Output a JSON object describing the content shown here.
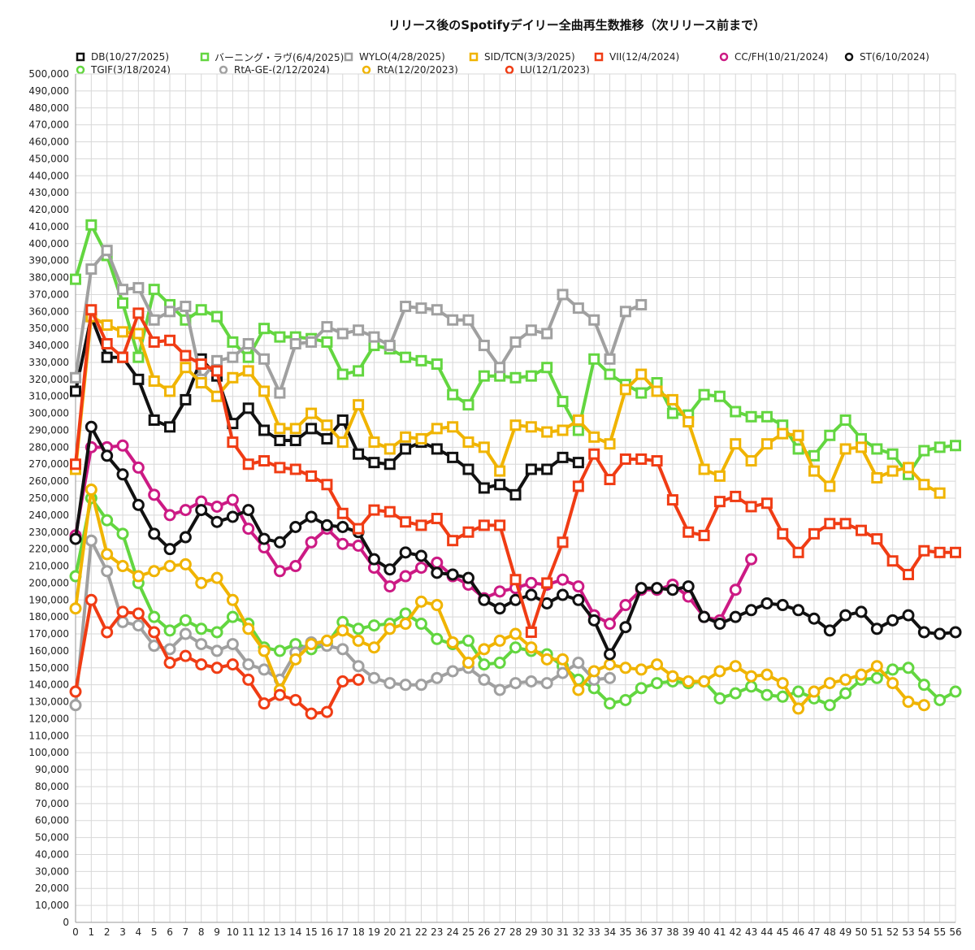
{
  "chart_data": {
    "type": "line",
    "title": "リリース後のSpotifyデイリー全曲再生数推移（次リリース前まで）",
    "xlabel": "",
    "ylabel": "",
    "xlim": [
      0,
      56
    ],
    "ylim": [
      0,
      500000
    ],
    "y_tick_step": 10000,
    "y_tick_labels": [
      "0",
      "10,000",
      "20,000",
      "30,000",
      "40,000",
      "50,000",
      "60,000",
      "70,000",
      "80,000",
      "90,000",
      "100,000",
      "110,000",
      "120,000",
      "130,000",
      "140,000",
      "150,000",
      "160,000",
      "170,000",
      "180,000",
      "190,000",
      "200,000",
      "210,000",
      "220,000",
      "230,000",
      "240,000",
      "250,000",
      "260,000",
      "270,000",
      "280,000",
      "290,000",
      "300,000",
      "310,000",
      "320,000",
      "330,000",
      "340,000",
      "350,000",
      "360,000",
      "370,000",
      "380,000",
      "390,000",
      "400,000",
      "410,000",
      "420,000",
      "430,000",
      "440,000",
      "450,000",
      "460,000",
      "470,000",
      "480,000",
      "490,000",
      "500,000"
    ],
    "x_tick_labels": [
      "0",
      "1",
      "2",
      "3",
      "4",
      "5",
      "6",
      "7",
      "8",
      "9",
      "10",
      "11",
      "12",
      "13",
      "14",
      "15",
      "16",
      "17",
      "18",
      "19",
      "20",
      "21",
      "22",
      "23",
      "24",
      "25",
      "26",
      "27",
      "28",
      "29",
      "30",
      "31",
      "32",
      "33",
      "34",
      "35",
      "36",
      "37",
      "38",
      "39",
      "40",
      "41",
      "42",
      "43",
      "44",
      "45",
      "46",
      "47",
      "48",
      "49",
      "50",
      "51",
      "52",
      "53",
      "54",
      "55",
      "56"
    ],
    "grid": true,
    "legend_position": "top",
    "series": [
      {
        "name": "TGIF(3/18/2024)",
        "color": "#63d640",
        "marker": "circle",
        "values": [
          204000,
          250000,
          237000,
          229000,
          200000,
          180000,
          172000,
          178000,
          173000,
          171000,
          180000,
          176000,
          162000,
          160000,
          164000,
          161000,
          164000,
          177000,
          173000,
          175000,
          176000,
          182000,
          176000,
          167000,
          164000,
          166000,
          152000,
          153000,
          162000,
          160000,
          158000,
          151000,
          143000,
          138000,
          129000,
          131000,
          138000,
          141000,
          142000,
          141000,
          142000,
          132000,
          135000,
          139000,
          134000,
          133000,
          136000,
          132000,
          128000,
          135000,
          143000,
          144000,
          149000,
          150000,
          140000,
          131000,
          136000
        ]
      },
      {
        "name": "RtA-GE-(2/12/2024)",
        "color": "#a0a0a0",
        "marker": "circle",
        "values": [
          128000,
          225000,
          207000,
          177000,
          175000,
          163000,
          161000,
          170000,
          164000,
          160000,
          164000,
          152000,
          149000,
          143000,
          159000,
          165000,
          163000,
          161000,
          151000,
          144000,
          141000,
          140000,
          140000,
          144000,
          148000,
          150000,
          143000,
          137000,
          141000,
          142000,
          141000,
          147000,
          153000,
          143000,
          144000
        ]
      },
      {
        "name": "RtA(12/20/2023)",
        "color": "#f0b400",
        "marker": "circle",
        "values": [
          185000,
          255000,
          217000,
          210000,
          204000,
          207000,
          210000,
          211000,
          200000,
          203000,
          190000,
          173000,
          160000,
          137000,
          155000,
          164000,
          166000,
          172000,
          166000,
          162000,
          173000,
          176000,
          189000,
          187000,
          165000,
          153000,
          161000,
          166000,
          170000,
          162000,
          155000,
          155000,
          137000,
          148000,
          152000,
          150000,
          149000,
          152000,
          145000,
          142000,
          142000,
          148000,
          151000,
          145000,
          146000,
          141000,
          126000,
          136000,
          141000,
          143000,
          146000,
          151000,
          141000,
          130000,
          128000
        ]
      },
      {
        "name": "LU(12/1/2023)",
        "color": "#f03c14",
        "marker": "circle",
        "values": [
          136000,
          190000,
          171000,
          183000,
          182000,
          171000,
          153000,
          157000,
          152000,
          150000,
          152000,
          143000,
          129000,
          134000,
          131000,
          123000,
          124000,
          142000,
          143000
        ]
      },
      {
        "name": "CC/FH(10/21/2024)",
        "color": "#cc1a84",
        "marker": "circle",
        "values": [
          228000,
          280000,
          280000,
          281000,
          268000,
          252000,
          240000,
          243000,
          248000,
          245000,
          249000,
          232000,
          221000,
          207000,
          210000,
          224000,
          232000,
          223000,
          222000,
          209000,
          198000,
          204000,
          209000,
          212000,
          204000,
          199000,
          191000,
          195000,
          197000,
          200000,
          199000,
          202000,
          198000,
          181000,
          176000,
          187000,
          196000,
          196000,
          199000,
          192000,
          180000,
          178000,
          196000,
          214000
        ]
      },
      {
        "name": "ST(6/10/2024)",
        "color": "#111111",
        "marker": "circle",
        "values": [
          226000,
          292000,
          275000,
          264000,
          246000,
          229000,
          220000,
          227000,
          243000,
          236000,
          239000,
          243000,
          226000,
          224000,
          233000,
          239000,
          234000,
          233000,
          230000,
          214000,
          208000,
          218000,
          216000,
          206000,
          205000,
          203000,
          190000,
          185000,
          190000,
          193000,
          188000,
          193000,
          190000,
          178000,
          158000,
          174000,
          197000,
          197000,
          196000,
          198000,
          180000,
          176000,
          180000,
          184000,
          188000,
          187000,
          184000,
          179000,
          172000,
          181000,
          183000,
          173000,
          178000,
          181000,
          171000,
          170000,
          171000
        ]
      },
      {
        "name": "DB(10/27/2025)",
        "color": "#111111",
        "marker": "square",
        "values": [
          313000,
          357000,
          333000,
          333000,
          320000,
          296000,
          292000,
          308000,
          332000,
          322000,
          294000,
          303000,
          290000,
          284000,
          284000,
          291000,
          285000,
          296000,
          276000,
          271000,
          270000,
          279000,
          283000,
          279000,
          274000,
          267000,
          256000,
          258000,
          252000,
          267000,
          267000,
          274000,
          271000
        ]
      },
      {
        "name": "バーニング・ラヴ(6/4/2025)",
        "color": "#63d640",
        "marker": "square",
        "values": [
          379000,
          411000,
          393000,
          365000,
          333000,
          373000,
          364000,
          355000,
          361000,
          357000,
          342000,
          333000,
          350000,
          345000,
          345000,
          344000,
          342000,
          323000,
          325000,
          340000,
          338000,
          333000,
          331000,
          329000,
          311000,
          305000,
          322000,
          322000,
          321000,
          322000,
          327000,
          307000,
          290000,
          332000,
          323000,
          317000,
          312000,
          318000,
          300000,
          299000,
          311000,
          310000,
          301000,
          298000,
          298000,
          293000,
          279000,
          275000,
          287000,
          296000,
          285000,
          279000,
          276000,
          264000,
          278000,
          280000,
          281000
        ]
      },
      {
        "name": "WYLO(4/28/2025)",
        "color": "#a0a0a0",
        "marker": "square",
        "values": [
          321000,
          385000,
          396000,
          373000,
          374000,
          355000,
          360000,
          363000,
          320000,
          331000,
          333000,
          341000,
          332000,
          312000,
          341000,
          342000,
          351000,
          347000,
          349000,
          345000,
          340000,
          363000,
          362000,
          361000,
          355000,
          355000,
          340000,
          327000,
          342000,
          349000,
          347000,
          370000,
          362000,
          355000,
          332000,
          360000,
          364000
        ]
      },
      {
        "name": "SID/TCN(3/3/2025)",
        "color": "#f0b400",
        "marker": "square",
        "values": [
          267000,
          357000,
          352000,
          348000,
          347000,
          319000,
          313000,
          327000,
          318000,
          310000,
          321000,
          325000,
          313000,
          291000,
          291000,
          300000,
          293000,
          283000,
          305000,
          283000,
          279000,
          286000,
          285000,
          291000,
          292000,
          283000,
          280000,
          266000,
          293000,
          292000,
          289000,
          290000,
          296000,
          286000,
          282000,
          314000,
          323000,
          313000,
          308000,
          295000,
          267000,
          263000,
          282000,
          272000,
          282000,
          288000,
          287000,
          266000,
          257000,
          279000,
          280000,
          262000,
          266000,
          268000,
          258000,
          253000
        ]
      },
      {
        "name": "VII(12/4/2024)",
        "color": "#f03c14",
        "marker": "square",
        "values": [
          270000,
          361000,
          341000,
          333000,
          359000,
          342000,
          343000,
          334000,
          329000,
          325000,
          283000,
          270000,
          272000,
          268000,
          267000,
          263000,
          258000,
          241000,
          232000,
          243000,
          242000,
          236000,
          234000,
          238000,
          225000,
          230000,
          234000,
          234000,
          202000,
          171000,
          200000,
          224000,
          257000,
          276000,
          261000,
          273000,
          273000,
          272000,
          249000,
          230000,
          228000,
          248000,
          251000,
          245000,
          247000,
          229000,
          218000,
          229000,
          235000,
          235000,
          231000,
          226000,
          213000,
          205000,
          219000,
          218000,
          218000
        ]
      }
    ]
  },
  "legend": {
    "rows": [
      [
        {
          "label": "DB(10/27/2025)",
          "color": "#111111",
          "marker": "square"
        },
        {
          "label": "バーニング・ラヴ(6/4/2025)",
          "color": "#63d640",
          "marker": "square"
        },
        {
          "label": "WYLO(4/28/2025)",
          "color": "#a0a0a0",
          "marker": "square"
        },
        {
          "label": "SID/TCN(3/3/2025)",
          "color": "#f0b400",
          "marker": "square"
        },
        {
          "label": "VII(12/4/2024)",
          "color": "#f03c14",
          "marker": "square"
        },
        {
          "label": "CC/FH(10/21/2024)",
          "color": "#cc1a84",
          "marker": "circle"
        },
        {
          "label": "ST(6/10/2024)",
          "color": "#111111",
          "marker": "circle"
        }
      ],
      [
        {
          "label": "TGIF(3/18/2024)",
          "color": "#63d640",
          "marker": "circle"
        },
        {
          "label": "RtA-GE-(2/12/2024)",
          "color": "#a0a0a0",
          "marker": "circle"
        },
        {
          "label": "RtA(12/20/2023)",
          "color": "#f0b400",
          "marker": "circle"
        },
        {
          "label": "LU(12/1/2023)",
          "color": "#f03c14",
          "marker": "circle"
        }
      ]
    ]
  }
}
